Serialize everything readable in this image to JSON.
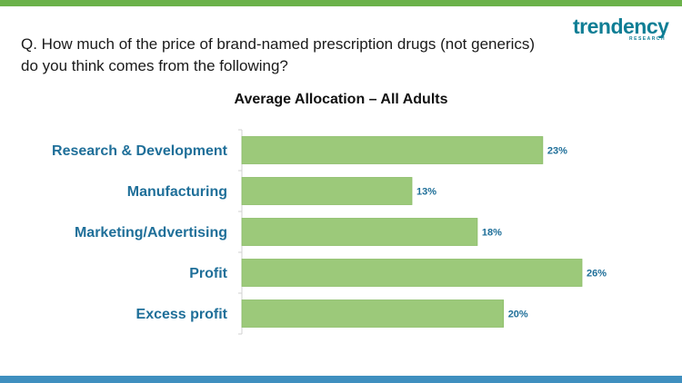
{
  "question": {
    "line1": "Q. How much of the price of brand-named prescription drugs (not generics)",
    "line2": "do you think comes from the following?"
  },
  "logo": {
    "brand": "trendency",
    "sub": "RESEARCH"
  },
  "colors": {
    "top_bar": "#6bb24a",
    "bottom_bar": "#3f8fbf",
    "bar": "#9cc97a",
    "bar_stroke": "#8bbd68",
    "category_text": "#1f6f99",
    "value_text": "#1f6f99",
    "axis": "#d0d0d0"
  },
  "chart_data": {
    "type": "bar",
    "orientation": "horizontal",
    "title": "Average Allocation – All Adults",
    "categories": [
      "Research & Development",
      "Manufacturing",
      "Marketing/Advertising",
      "Profit",
      "Excess profit"
    ],
    "values": [
      23,
      13,
      18,
      26,
      20
    ],
    "value_labels": [
      "23%",
      "13%",
      "18%",
      "26%",
      "20%"
    ],
    "unit": "%",
    "xlim": [
      0,
      26
    ],
    "grid": false,
    "legend": "none"
  }
}
